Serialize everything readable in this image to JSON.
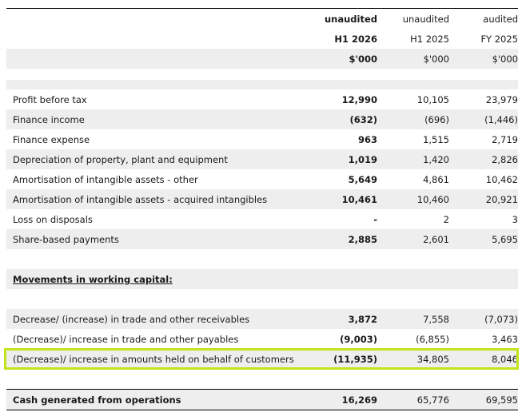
{
  "header": {
    "c1": [
      "unaudited",
      "H1 2026",
      "$'000"
    ],
    "c2": [
      "unaudited",
      "H1 2025",
      "$'000"
    ],
    "c3": [
      "audited",
      "FY 2025",
      "$'000"
    ]
  },
  "rows": [
    {
      "label": "Profit before tax",
      "c1": "12,990",
      "c2": "10,105",
      "c3": "23,979"
    },
    {
      "label": "Finance income",
      "c1": "(632)",
      "c2": "(696)",
      "c3": "(1,446)"
    },
    {
      "label": "Finance expense",
      "c1": "963",
      "c2": "1,515",
      "c3": "2,719"
    },
    {
      "label": "Depreciation of property, plant and equipment",
      "c1": "1,019",
      "c2": "1,420",
      "c3": "2,826"
    },
    {
      "label": "Amortisation of intangible assets - other",
      "c1": "5,649",
      "c2": "4,861",
      "c3": "10,462"
    },
    {
      "label": "Amortisation of intangible assets - acquired intangibles",
      "c1": "10,461",
      "c2": "10,460",
      "c3": "20,921"
    },
    {
      "label": "Loss on disposals",
      "c1": "-",
      "c2": "2",
      "c3": "3"
    },
    {
      "label": "Share-based payments",
      "c1": "2,885",
      "c2": "2,601",
      "c3": "5,695"
    }
  ],
  "section_heading": "Movements in working capital:",
  "wc_rows": [
    {
      "label": "Decrease/ (increase) in trade and other receivables",
      "c1": "3,872",
      "c2": "7,558",
      "c3": "(7,073)"
    },
    {
      "label": "(Decrease)/ increase in trade and other payables",
      "c1": "(9,003)",
      "c2": "(6,855)",
      "c3": "3,463"
    },
    {
      "label": "(Decrease)/ increase in amounts held on behalf of customers",
      "c1": "(11,935)",
      "c2": "34,805",
      "c3": "8,046"
    }
  ],
  "total": {
    "label": "Cash generated from operations",
    "c1": "16,269",
    "c2": "65,776",
    "c3": "69,595"
  },
  "highlight_color": "#c5e21a"
}
